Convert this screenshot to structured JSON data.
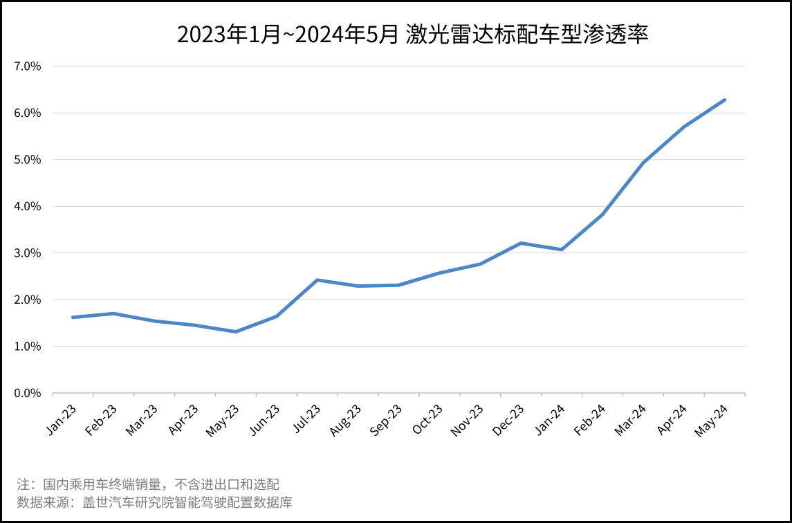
{
  "frame": {
    "background": "#ffffff",
    "border_color": "#000000"
  },
  "chart_data": {
    "type": "line",
    "title": "2023年1月~2024年5月 激光雷达标配车型渗透率",
    "categories": [
      "Jan-23",
      "Feb-23",
      "Mar-23",
      "Apr-23",
      "May-23",
      "Jun-23",
      "Jul-23",
      "Aug-23",
      "Sep-23",
      "Oct-23",
      "Nov-23",
      "Dec-23",
      "Jan-24",
      "Feb-24",
      "Mar-24",
      "Apr-24",
      "May-24"
    ],
    "values": [
      1.62,
      1.7,
      1.54,
      1.45,
      1.31,
      1.64,
      2.42,
      2.29,
      2.31,
      2.57,
      2.76,
      3.21,
      3.07,
      3.82,
      4.93,
      5.7,
      6.28
    ],
    "unit": "%",
    "ylim": [
      0,
      7
    ],
    "y_tick_step": 1,
    "y_tick_labels": [
      "0.0%",
      "1.0%",
      "2.0%",
      "3.0%",
      "4.0%",
      "5.0%",
      "6.0%",
      "7.0%"
    ],
    "x_tick_rotation": -45,
    "grid": true,
    "legend": "none",
    "colors": {
      "series_line": "#4b86c9",
      "gridline": "#d6d6d6",
      "axis_line": "#bfbfbf",
      "tick_label": "#000000",
      "title": "#000000"
    }
  },
  "notes": {
    "line1": "注：国内乘用车终端销量，不含进出口和选配",
    "line2": "数据来源：盖世汽车研究院智能驾驶配置数据库",
    "color": "#7f7f7f"
  }
}
